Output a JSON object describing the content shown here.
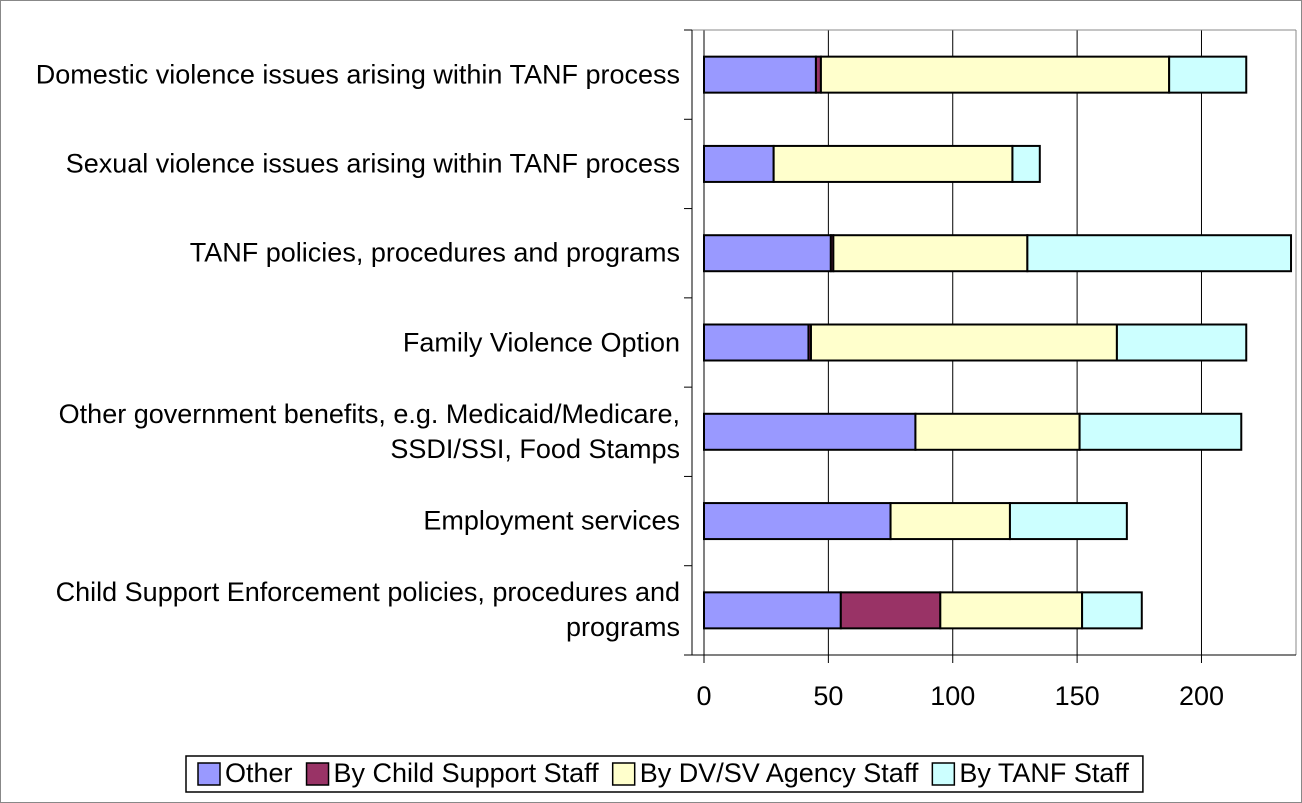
{
  "chart_data": {
    "type": "stacked-barh",
    "categories": [
      "Domestic violence issues arising within TANF process",
      "Sexual violence issues arising within TANF process",
      "TANF policies, procedures and programs",
      "Family Violence Option",
      "Other government benefits, e.g. Medicaid/Medicare, SSDI/SSI, Food Stamps",
      "Employment services",
      "Child Support Enforcement policies, procedures and programs"
    ],
    "series": [
      {
        "name": "Other",
        "color": "#9999ff",
        "values": [
          45,
          28,
          51,
          42,
          85,
          75,
          55
        ]
      },
      {
        "name": "By Child Support Staff",
        "color": "#993366",
        "values": [
          2,
          0,
          1,
          1,
          0,
          0,
          40
        ]
      },
      {
        "name": "By DV/SV Agency Staff",
        "color": "#ffffcc",
        "values": [
          140,
          96,
          78,
          123,
          66,
          48,
          57
        ]
      },
      {
        "name": "By TANF Staff",
        "color": "#ccffff",
        "values": [
          31,
          11,
          106,
          52,
          65,
          47,
          24
        ]
      }
    ],
    "xlim": [
      0,
      238
    ],
    "xticks": [
      0,
      50,
      100,
      150,
      200
    ],
    "grid": true,
    "legend": "bottom"
  }
}
